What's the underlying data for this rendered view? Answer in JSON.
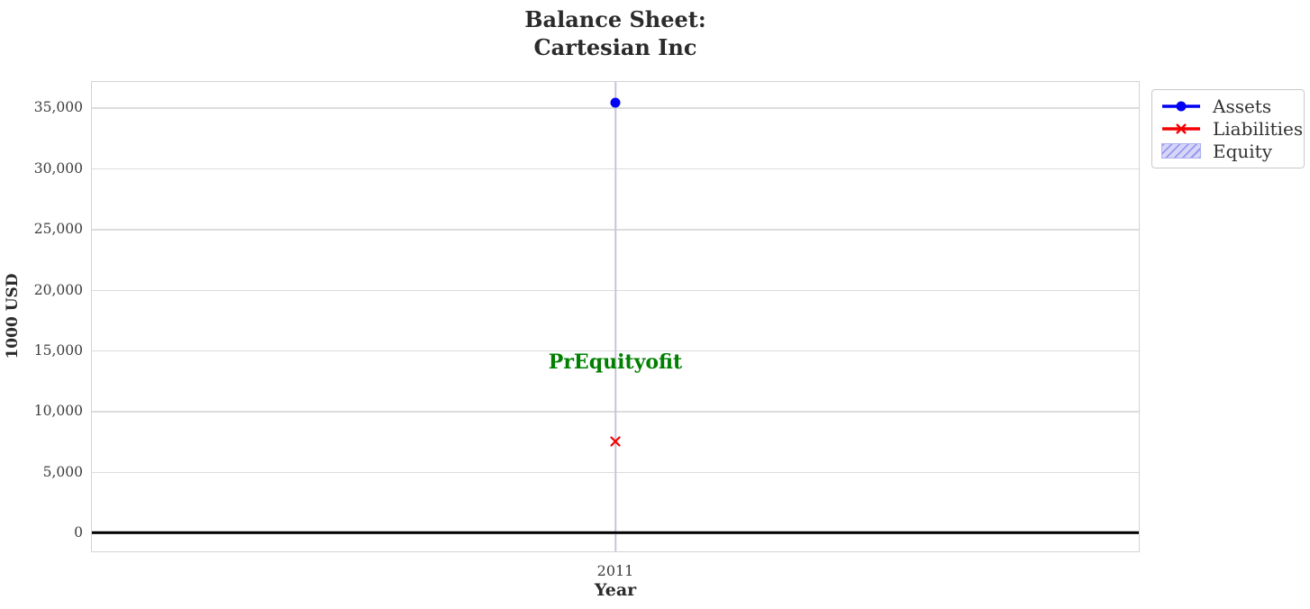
{
  "chart_data": {
    "type": "scatter",
    "title": "Balance Sheet:\nCartesian Inc",
    "title_lines": [
      "Balance Sheet:",
      "Cartesian Inc"
    ],
    "xlabel": "Year",
    "ylabel": "1000 USD",
    "x_categories": [
      "2011"
    ],
    "series": [
      {
        "name": "Assets",
        "color": "#0000f5",
        "marker": "circle",
        "values": [
          35400
        ]
      },
      {
        "name": "Liabilities",
        "color": "#f50000",
        "marker": "x",
        "values": [
          7500
        ]
      },
      {
        "name": "Equity",
        "color": "#d6d6f8",
        "hatch_color": "#9898ee",
        "marker": "hatched-patch",
        "values": []
      }
    ],
    "annotations": [
      {
        "text": "PrEquityofit",
        "color": "#008000",
        "x": "2011",
        "y": 14000
      }
    ],
    "yticks": [
      0,
      5000,
      10000,
      15000,
      20000,
      25000,
      30000,
      35000
    ],
    "ytick_labels": [
      "0",
      "5,000",
      "10,000",
      "15,000",
      "20,000",
      "25,000",
      "30,000",
      "35,000"
    ],
    "ylim": [
      -1550,
      37100
    ],
    "grid": true,
    "zero_line": {
      "value": 0,
      "color": "#000000"
    },
    "legend": {
      "position": "outside-top-right",
      "entries": [
        "Assets",
        "Liabilities",
        "Equity"
      ]
    },
    "colors": {
      "grid_horizontal": "#dcdcdc",
      "grid_vertical": "#c6c6d6",
      "plot_border": "#d3d3d3",
      "tick_text": "#3d3d3d",
      "title_text": "#2b2b2b"
    }
  }
}
